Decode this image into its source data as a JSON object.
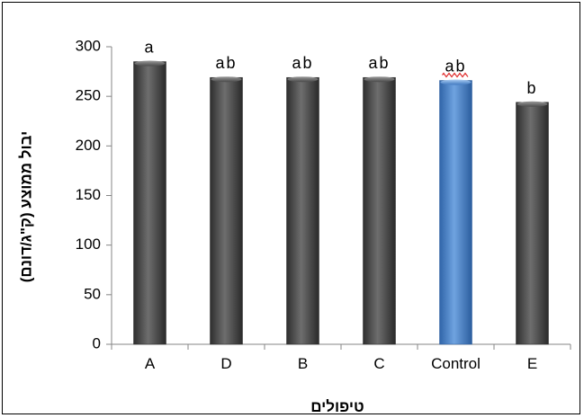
{
  "chart_data": {
    "type": "bar",
    "categories": [
      "A",
      "D",
      "B",
      "C",
      "Control",
      "E"
    ],
    "values": [
      285,
      269,
      269,
      269,
      266,
      244
    ],
    "annotations": [
      "a",
      "ab",
      "ab",
      "ab",
      "ab",
      "b"
    ],
    "xlabel": "טיפולים",
    "ylabel": "יבול ממוצע (ק\"ג/דונם)",
    "ylim": [
      0,
      300
    ],
    "yticks": [
      0,
      50,
      100,
      150,
      200,
      250,
      300
    ],
    "grid": false,
    "legend": "none",
    "colors": {
      "bar": "#595959",
      "highlight": "#4a7fc1",
      "highlight_category": "Control",
      "squiggle": "#e03030"
    }
  }
}
